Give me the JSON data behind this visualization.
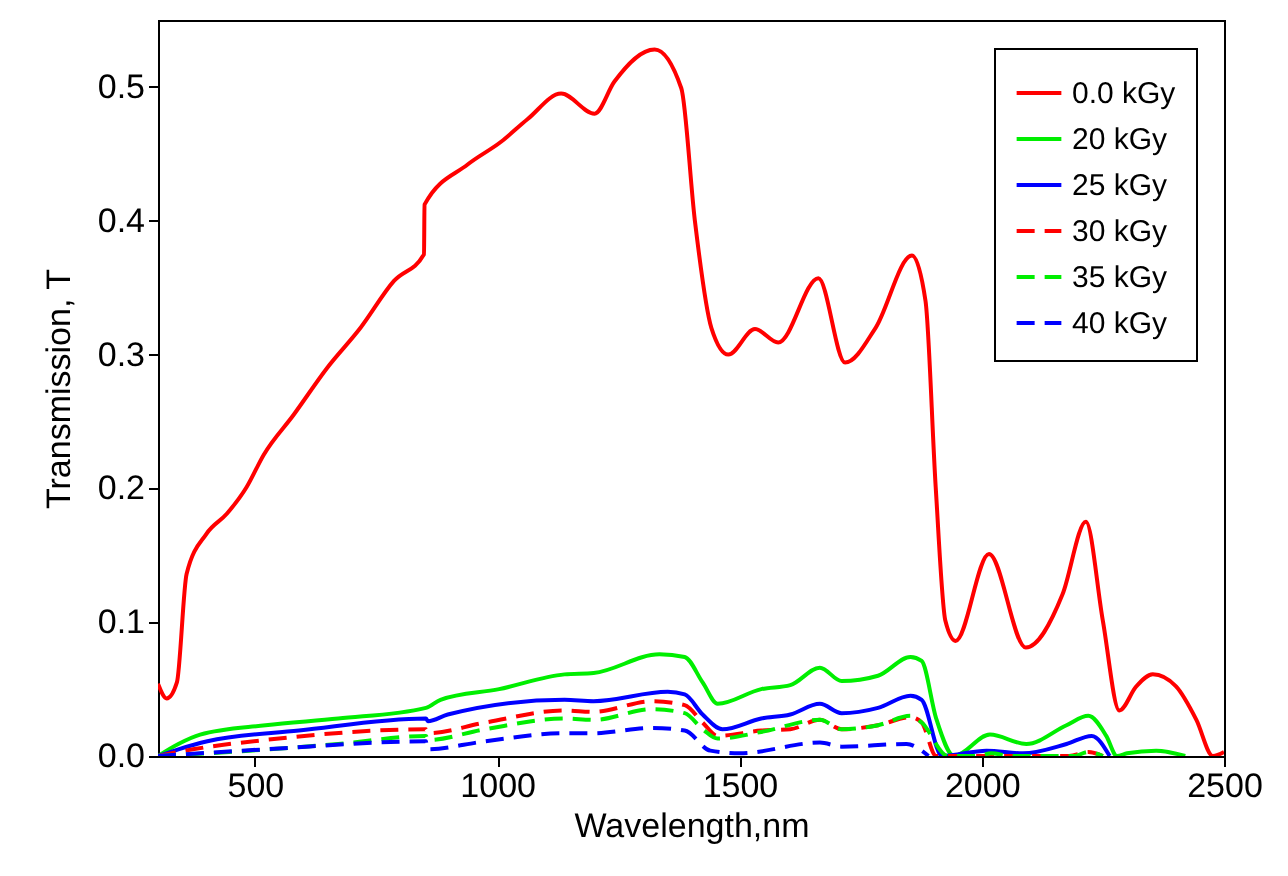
{
  "chart_data": {
    "type": "line",
    "xlabel": "Wavelength,nm",
    "ylabel": "Transmission, T",
    "xlim": [
      300,
      2500
    ],
    "xticks": [
      500,
      1000,
      1500,
      2000,
      2500
    ],
    "ylim": [
      0,
      0.55
    ],
    "yticks": [
      {
        "value": 0,
        "label": "0.0"
      },
      0.1,
      0.2,
      0.3,
      0.4,
      0.5
    ],
    "legend": "top right",
    "grid": false,
    "series": [
      {
        "name": "0.0 kGy",
        "color": "#ff0000",
        "line_style": "solid",
        "x": [
          300,
          318,
          339,
          359,
          400,
          442,
          483,
          518,
          580,
          649,
          718,
          787,
          849,
          850,
          939,
          1008,
          1063,
          1132,
          1201,
          1242,
          1325,
          1380,
          1408,
          1442,
          1477,
          1532,
          1580,
          1663,
          1718,
          1781,
          1856,
          1884,
          1905,
          1925,
          1946,
          2015,
          2091,
          2167,
          2215,
          2250,
          2284,
          2319,
          2353,
          2401,
          2443,
          2477,
          2500
        ],
        "values": [
          0.054,
          0.043,
          0.055,
          0.136,
          0.166,
          0.181,
          0.201,
          0.225,
          0.255,
          0.29,
          0.32,
          0.355,
          0.375,
          0.412,
          0.442,
          0.459,
          0.476,
          0.495,
          0.48,
          0.504,
          0.528,
          0.499,
          0.4,
          0.32,
          0.3,
          0.319,
          0.309,
          0.357,
          0.294,
          0.32,
          0.374,
          0.34,
          0.201,
          0.101,
          0.086,
          0.151,
          0.081,
          0.121,
          0.175,
          0.101,
          0.034,
          0.052,
          0.061,
          0.052,
          0.027,
          0.0,
          0.003
        ]
      },
      {
        "name": "20 kGy",
        "color": "#00ee00",
        "line_style": "solid",
        "x": [
          300,
          342,
          387,
          522,
          672,
          853,
          883,
          1004,
          1139,
          1199,
          1335,
          1387,
          1424,
          1455,
          1545,
          1605,
          1666,
          1711,
          1786,
          1853,
          1876,
          1906,
          1943,
          2017,
          2092,
          2175,
          2220,
          2257,
          2279,
          2300,
          2360,
          2420
        ],
        "values": [
          0,
          0.009,
          0.016,
          0.023,
          0.028,
          0.036,
          0.042,
          0.05,
          0.061,
          0.062,
          0.076,
          0.074,
          0.055,
          0.039,
          0.05,
          0.053,
          0.066,
          0.056,
          0.06,
          0.074,
          0.071,
          0.028,
          0,
          0.016,
          0.009,
          0.023,
          0.03,
          0.015,
          0,
          0.002,
          0.004,
          0
        ]
      },
      {
        "name": "25 kGy",
        "color": "#0000ff",
        "line_style": "solid",
        "x": [
          300,
          342,
          402,
          591,
          853,
          857,
          898,
          1139,
          1199,
          1352,
          1387,
          1424,
          1465,
          1545,
          1605,
          1666,
          1711,
          1786,
          1853,
          1876,
          1918,
          2010,
          2085,
          2175,
          2227,
          2264
        ],
        "values": [
          0,
          0.005,
          0.011,
          0.019,
          0.028,
          0.026,
          0.031,
          0.042,
          0.041,
          0.048,
          0.046,
          0.031,
          0.02,
          0.028,
          0.031,
          0.039,
          0.032,
          0.036,
          0.045,
          0.042,
          0,
          0.004,
          0.002,
          0.009,
          0.015,
          0
        ]
      },
      {
        "name": "30 kGy",
        "color": "#ff0000",
        "line_style": "dashed",
        "x": [
          300,
          372,
          522,
          853,
          857,
          975,
          1139,
          1199,
          1320,
          1387,
          1424,
          1455,
          1545,
          1605,
          1666,
          1711,
          1786,
          1853,
          1876,
          1906,
          2180,
          2220,
          2250
        ],
        "values": [
          0,
          0.005,
          0.012,
          0.02,
          0.017,
          0.025,
          0.034,
          0.033,
          0.041,
          0.038,
          0.025,
          0.015,
          0.019,
          0.02,
          0.027,
          0.02,
          0.023,
          0.029,
          0.025,
          0,
          0,
          0.003,
          0
        ]
      },
      {
        "name": "35 kGy",
        "color": "#00ee00",
        "line_style": "dashed",
        "x": [
          300,
          447,
          672,
          853,
          857,
          975,
          1139,
          1199,
          1320,
          1387,
          1424,
          1455,
          1545,
          1666,
          1711,
          1786,
          1853,
          1876,
          1930,
          1990,
          2020,
          2060,
          2190,
          2220,
          2250
        ],
        "values": [
          0,
          0.003,
          0.009,
          0.015,
          0.012,
          0.02,
          0.028,
          0.027,
          0.035,
          0.032,
          0.02,
          0.013,
          0.018,
          0.027,
          0.02,
          0.023,
          0.03,
          0.025,
          0,
          0,
          0.002,
          0,
          0,
          0.003,
          0
        ]
      },
      {
        "name": "40 kGy",
        "color": "#0000ff",
        "line_style": "dashed",
        "x": [
          300,
          522,
          853,
          855,
          975,
          1139,
          1199,
          1320,
          1387,
          1440,
          1500,
          1666,
          1711,
          1845,
          1876,
          1890
        ],
        "values": [
          0,
          0.005,
          0.011,
          0.005,
          0.011,
          0.017,
          0.017,
          0.021,
          0.019,
          0.004,
          0.002,
          0.01,
          0.007,
          0.009,
          0.004,
          0
        ]
      }
    ]
  }
}
